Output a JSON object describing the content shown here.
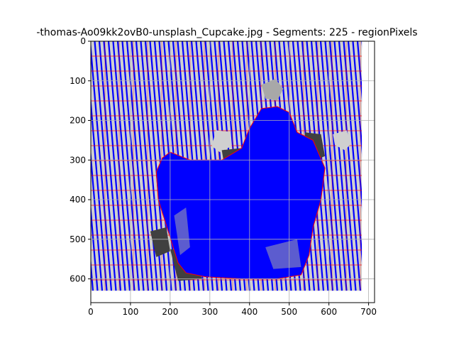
{
  "chart_data": {
    "type": "image",
    "title": "-thomas-Ao09kk2ovB0-unsplash_Cupcake.jpg - Segments: 225 - regionPixels",
    "xlabel": "",
    "ylabel": "",
    "xlim": [
      0,
      715
    ],
    "ylim": [
      660,
      0
    ],
    "x_ticks": [
      0,
      100,
      200,
      300,
      400,
      500,
      600,
      700
    ],
    "y_ticks": [
      0,
      100,
      200,
      300,
      400,
      500,
      600
    ],
    "image_extent": {
      "x": [
        0,
        683
      ],
      "y": [
        0,
        630
      ]
    },
    "segments": 225,
    "grid": true,
    "colors": {
      "background_light": "#d0d0d0",
      "shadow_dark": "#404040",
      "mid_gray": "#a8a8a8",
      "contour": "#0000ff",
      "boundary": "#ff0000"
    }
  }
}
